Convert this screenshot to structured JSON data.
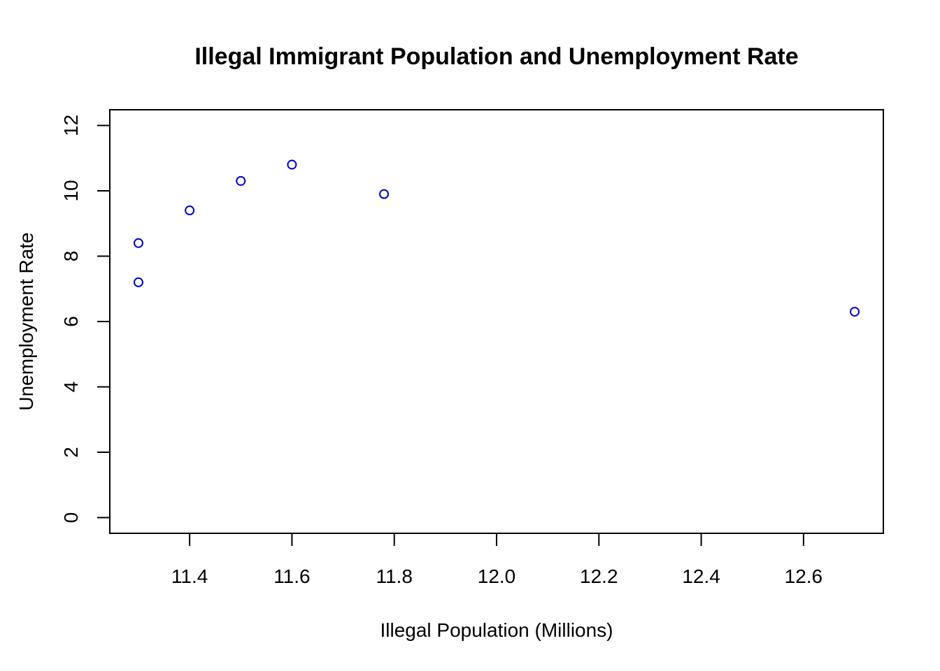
{
  "chart_data": {
    "type": "scatter",
    "title": "Illegal Immigrant Population and Unemployment Rate",
    "xlabel": "Illegal Population (Millions)",
    "ylabel": "Unemployment Rate",
    "xlim": [
      11.244,
      12.756
    ],
    "ylim": [
      -0.48,
      12.48
    ],
    "x_ticks": [
      11.4,
      11.6,
      11.8,
      12.0,
      12.2,
      12.4,
      12.6
    ],
    "x_tick_labels": [
      "11.4",
      "11.6",
      "11.8",
      "12.0",
      "12.2",
      "12.4",
      "12.6"
    ],
    "y_ticks": [
      0,
      2,
      4,
      6,
      8,
      10,
      12
    ],
    "y_tick_labels": [
      "0",
      "2",
      "4",
      "6",
      "8",
      "10",
      "12"
    ],
    "grid": false,
    "marker": "open-circle",
    "series": [
      {
        "color": "#0000cd",
        "points": [
          {
            "x": 11.3,
            "y": 8.4
          },
          {
            "x": 11.3,
            "y": 7.2
          },
          {
            "x": 11.4,
            "y": 9.4
          },
          {
            "x": 11.5,
            "y": 10.3
          },
          {
            "x": 11.6,
            "y": 10.8
          },
          {
            "x": 11.78,
            "y": 9.9
          },
          {
            "x": 12.7,
            "y": 6.3
          }
        ]
      }
    ]
  }
}
